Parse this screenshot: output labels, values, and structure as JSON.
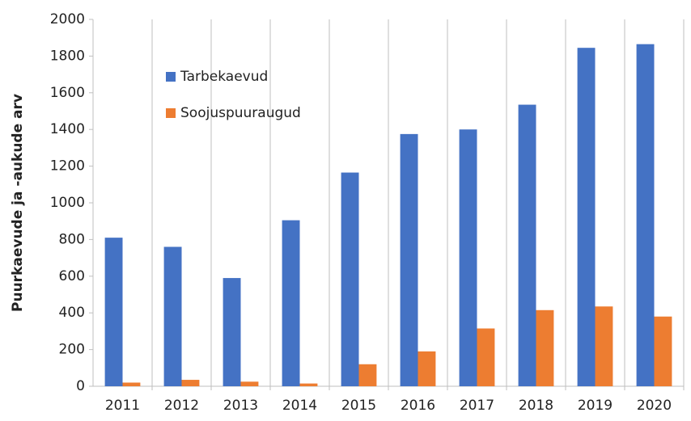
{
  "chart_data": {
    "type": "bar",
    "y_label": "Puurkaevude ja -aukude arv",
    "categories": [
      "2011",
      "2012",
      "2013",
      "2014",
      "2015",
      "2016",
      "2017",
      "2018",
      "2019",
      "2020"
    ],
    "series": [
      {
        "name": "Tarbekaevud",
        "color": "#4472c4",
        "values": [
          810,
          760,
          590,
          905,
          1165,
          1375,
          1400,
          1535,
          1845,
          1865
        ]
      },
      {
        "name": "Soojuspuuraugud",
        "color": "#ed7d31",
        "values": [
          20,
          35,
          25,
          15,
          120,
          190,
          315,
          415,
          435,
          380
        ]
      }
    ],
    "ylim": [
      0,
      2000
    ],
    "yticks": [
      0,
      200,
      400,
      600,
      800,
      1000,
      1200,
      1400,
      1600,
      1800,
      2000
    ],
    "grid": true,
    "legend": "upper left"
  }
}
